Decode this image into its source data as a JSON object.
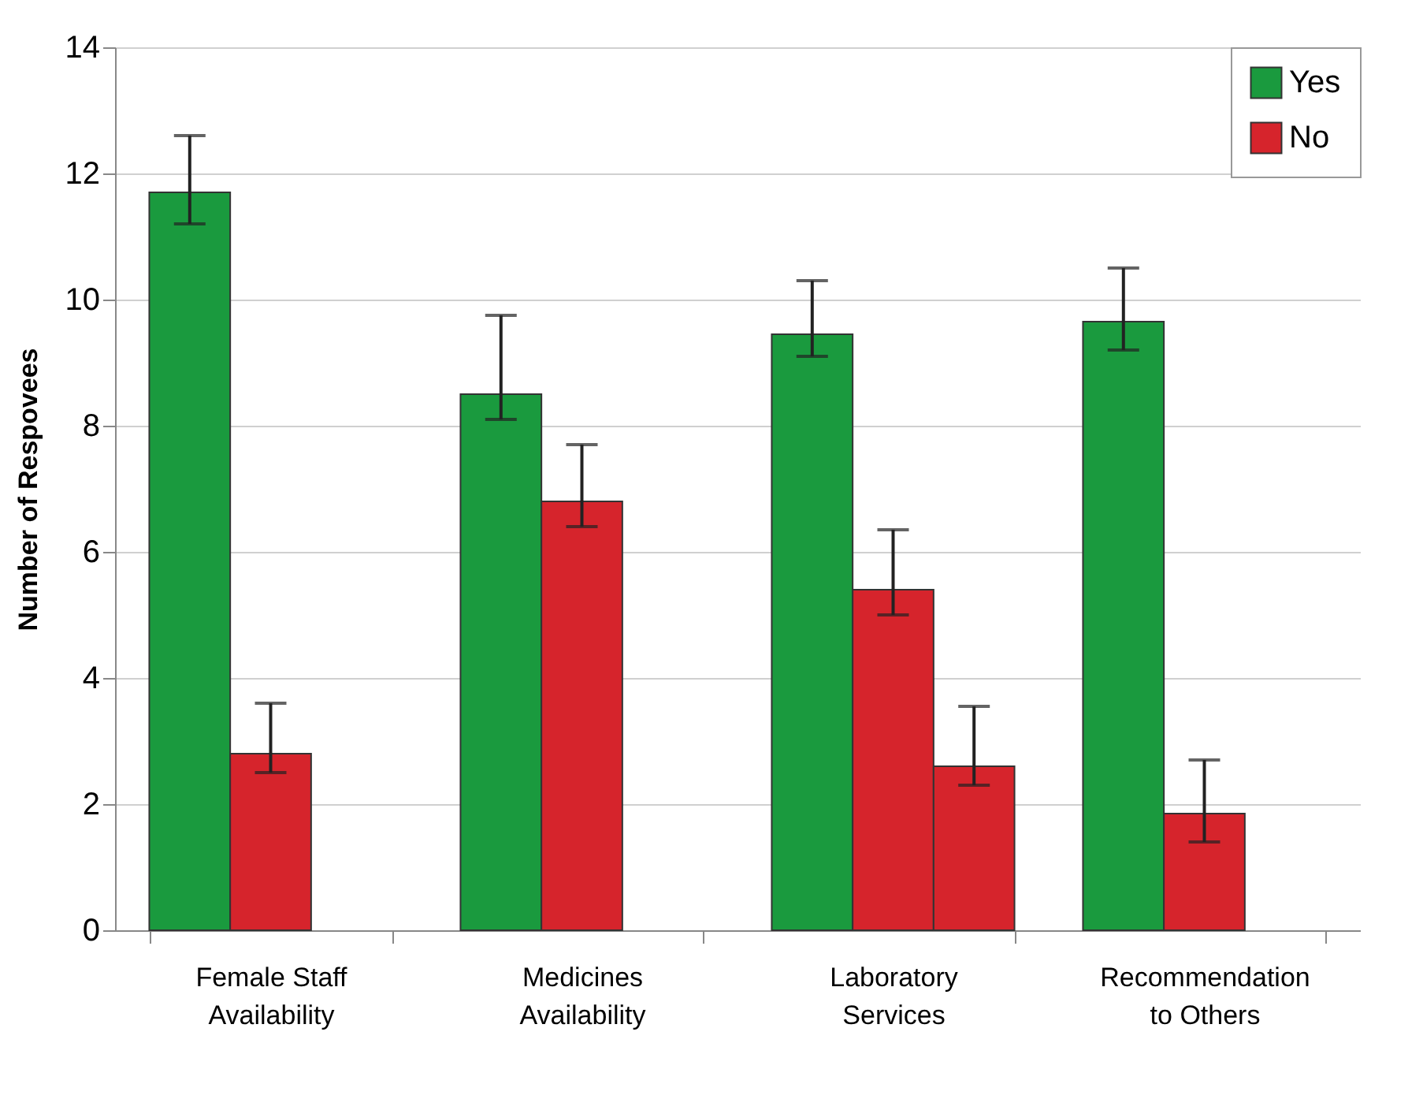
{
  "chart_data": {
    "type": "bar",
    "ylabel": "Number of Respovees",
    "categories": [
      "Female Staff\nAvailability",
      "Medicines\nAvailability",
      "Laboratory\nServices",
      "Recommendation\nto Others"
    ],
    "series": [
      {
        "name": "Yes",
        "color": "#1a9a3e",
        "values": [
          11.7,
          8.5,
          9.45,
          9.65
        ],
        "errors": [
          [
            11.2,
            12.6
          ],
          [
            8.1,
            9.75
          ],
          [
            9.1,
            10.3
          ],
          [
            9.2,
            10.5
          ]
        ]
      },
      {
        "name": "No",
        "color": "#d6242c",
        "values": [
          2.8,
          6.8,
          5.4,
          1.85
        ],
        "errors": [
          [
            2.5,
            3.6
          ],
          [
            6.4,
            7.7
          ],
          [
            5.0,
            6.35
          ],
          [
            1.4,
            2.7
          ]
        ]
      },
      {
        "color": "#d6242c",
        "values": [
          null,
          null,
          2.6,
          null
        ],
        "errors": [
          null,
          null,
          [
            2.3,
            3.55
          ],
          null
        ]
      }
    ],
    "ylim": [
      0,
      14
    ],
    "yticks": [
      0,
      2,
      4,
      6,
      8,
      10,
      12,
      14
    ],
    "grid": "y",
    "legend": "top right"
  }
}
